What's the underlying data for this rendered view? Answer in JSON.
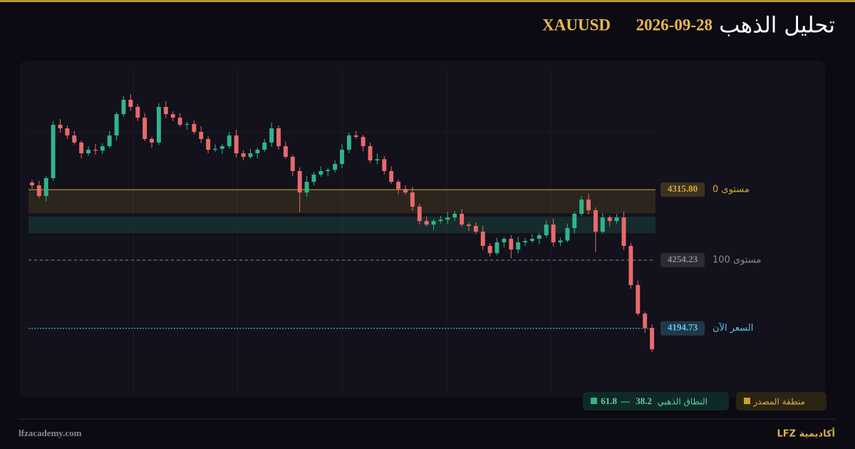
{
  "header": {
    "title": "تحليل الذهب",
    "date": "2026-09-28",
    "symbol": "XAUUSD"
  },
  "chart_data": {
    "type": "candlestick",
    "up_color": "#2fb58a",
    "down_color": "#e86a6a",
    "grid": true,
    "ylim": [
      4139.2,
      4422.2
    ],
    "open": [
      4322.0,
      4319.5,
      4310.2,
      4325.8,
      4372.4,
      4369.3,
      4363.1,
      4356.9,
      4347.5,
      4350.6,
      4349.8,
      4353.7,
      4363.1,
      4381.7,
      4394.2,
      4388.0,
      4378.6,
      4360.0,
      4356.9,
      4388.0,
      4381.7,
      4378.6,
      4372.4,
      4373.1,
      4366.2,
      4360.0,
      4350.6,
      4351.4,
      4353.7,
      4363.1,
      4347.5,
      4344.4,
      4347.5,
      4350.6,
      4356.9,
      4369.3,
      4353.7,
      4344.4,
      4332.0,
      4313.3,
      4322.6,
      4328.9,
      4332.0,
      4333.0,
      4338.2,
      4350.6,
      4363.1,
      4361.8,
      4353.7,
      4341.3,
      4342.4,
      4332.0,
      4322.6,
      4316.4,
      4313.3,
      4300.9,
      4288.4,
      4285.3,
      4288.4,
      4289.6,
      4291.5,
      4294.7,
      4285.3,
      4284.1,
      4279.1,
      4266.7,
      4260.4,
      4269.8,
      4272.9,
      4263.6,
      4269.8,
      4271.0,
      4272.9,
      4276.0,
      4285.3,
      4269.8,
      4271.4,
      4282.2,
      4294.7,
      4307.1,
      4297.8,
      4279.1,
      4291.5,
      4288.4,
      4291.5,
      4266.7,
      4232.5,
      4207.6,
      4195.1
    ],
    "high": [
      4324.5,
      4323.5,
      4327.6,
      4375.6,
      4377.4,
      4371.8,
      4367.1,
      4358.7,
      4353.8,
      4355.6,
      4356.2,
      4367.1,
      4383.5,
      4397.4,
      4399.2,
      4390.5,
      4382.6,
      4361.8,
      4391.2,
      4393.0,
      4384.2,
      4382.6,
      4374.9,
      4376.3,
      4371.2,
      4362.5,
      4355.4,
      4355.5,
      4366.3,
      4368.1,
      4350.0,
      4351.5,
      4352.4,
      4360.1,
      4374.3,
      4371.8,
      4357.7,
      4346.2,
      4335.2,
      4327.6,
      4331.4,
      4336.0,
      4334.8,
      4341.4,
      4355.6,
      4365.6,
      4367.1,
      4363.6,
      4356.9,
      4347.4,
      4344.9,
      4336.0,
      4324.4,
      4319.6,
      4318.3,
      4303.4,
      4292.4,
      4290.2,
      4292.8,
      4296.5,
      4297.2,
      4298.7,
      4287.1,
      4287.3,
      4284.1,
      4269.2,
      4273.8,
      4274.7,
      4276.1,
      4274.8,
      4273.5,
      4276.9,
      4277.8,
      4288.5,
      4290.3,
      4273.9,
      4286.2,
      4296.5,
      4310.3,
      4312.1,
      4300.3,
      4295.5,
      4293.3,
      4294.7,
      4296.5,
      4269.2,
      4236.5,
      4209.4,
      4198.3
    ],
    "low": [
      4316.5,
      4308.5,
      4305.7,
      4323.6,
      4365.7,
      4360.1,
      4355.2,
      4343.0,
      4345.3,
      4346.2,
      4346.8,
      4352.0,
      4358.6,
      4379.5,
      4384.4,
      4375.6,
      4358.3,
      4352.4,
      4354.7,
      4378.1,
      4375.6,
      4370.7,
      4367.9,
      4364.0,
      4356.4,
      4347.6,
      4348.9,
      4346.9,
      4351.5,
      4343.9,
      4341.4,
      4342.7,
      4343.0,
      4348.4,
      4353.3,
      4350.7,
      4342.7,
      4327.5,
      4296.0,
      4309.7,
      4319.6,
      4327.2,
      4327.5,
      4330.8,
      4334.6,
      4347.6,
      4360.1,
      4349.2,
      4339.1,
      4337.7,
      4329.0,
      4320.9,
      4311.9,
      4311.1,
      4297.3,
      4285.4,
      4283.6,
      4280.8,
      4286.2,
      4286.0,
      4288.5,
      4283.6,
      4279.6,
      4276.9,
      4263.1,
      4257.4,
      4258.7,
      4265.3,
      4256.0,
      4260.0,
      4266.8,
      4269.3,
      4268.4,
      4273.8,
      4266.2,
      4266.8,
      4269.7,
      4277.7,
      4292.5,
      4294.2,
      4261.0,
      4277.4,
      4283.9,
      4286.2,
      4263.1,
      4229.5,
      4205.9,
      4190.6,
      4174.3
    ],
    "close": [
      4319.5,
      4310.2,
      4325.8,
      4372.4,
      4369.3,
      4363.1,
      4356.9,
      4347.5,
      4350.6,
      4349.8,
      4353.7,
      4363.1,
      4381.7,
      4394.2,
      4388.0,
      4378.6,
      4360.0,
      4356.9,
      4388.0,
      4381.7,
      4378.6,
      4372.4,
      4373.1,
      4366.2,
      4360.0,
      4350.6,
      4351.4,
      4353.7,
      4363.1,
      4347.5,
      4344.4,
      4347.5,
      4350.6,
      4356.9,
      4369.3,
      4353.7,
      4344.4,
      4332.0,
      4313.3,
      4322.6,
      4328.9,
      4332.0,
      4333.0,
      4338.2,
      4350.6,
      4363.1,
      4361.8,
      4353.7,
      4341.3,
      4342.4,
      4332.0,
      4322.6,
      4316.4,
      4313.3,
      4300.9,
      4288.4,
      4285.3,
      4288.4,
      4289.6,
      4291.5,
      4294.7,
      4285.3,
      4284.1,
      4279.1,
      4266.7,
      4260.4,
      4269.8,
      4272.9,
      4263.6,
      4269.8,
      4271.0,
      4272.9,
      4276.0,
      4285.3,
      4269.8,
      4271.4,
      4282.2,
      4294.7,
      4307.1,
      4297.8,
      4279.1,
      4291.5,
      4288.4,
      4291.5,
      4266.7,
      4232.5,
      4207.6,
      4195.1,
      4176.5
    ],
    "levels": [
      {
        "label": "مستوى 0",
        "price": {
          "value": 4315.8,
          "label": "4315.80"
        },
        "color": "#d4aa3a",
        "style": "solid"
      },
      {
        "label": "مستوى 100",
        "price": {
          "value": 4254.23,
          "label": "4254.23"
        },
        "color": "#8a8a90",
        "style": "dashed"
      },
      {
        "label": "السعر الآن",
        "price": {
          "value": 4194.73,
          "label": "4194.73"
        },
        "color": "#5cc6e8",
        "style": "dotted"
      }
    ],
    "source_zone": {
      "label": "منطقة المصدر",
      "from": 4315.8,
      "to": 4295.0,
      "color": "#c9a227"
    },
    "golden_zone": {
      "label": "النطاق الذهبي",
      "from": 38.2,
      "to": 61.8,
      "separator": "—",
      "color": "#2fb58a"
    }
  },
  "footer": {
    "site": "lfzacademy.com",
    "brand": "أكاديمية LFZ"
  }
}
